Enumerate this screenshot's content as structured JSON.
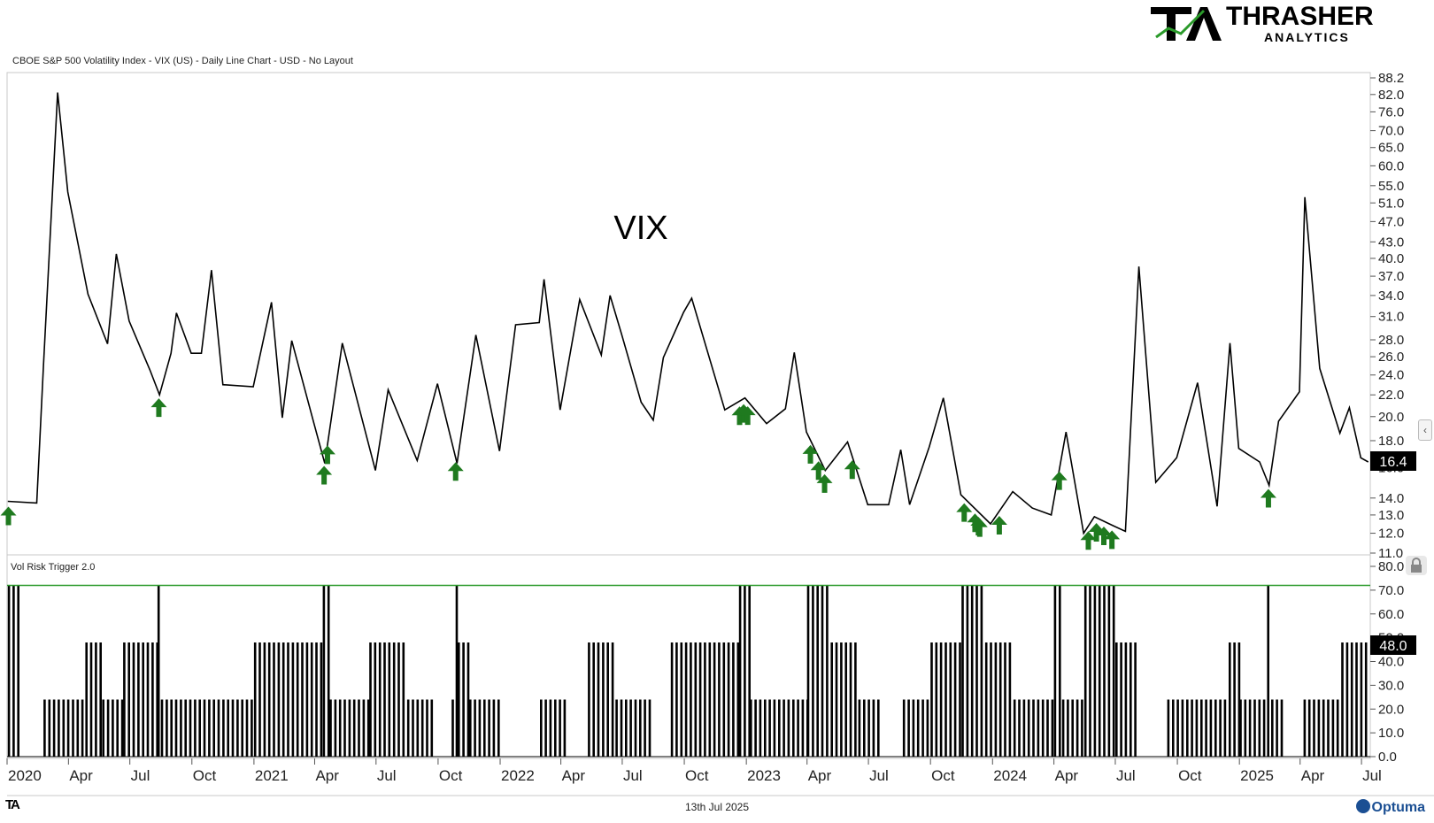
{
  "header": {
    "chart_title": "CBOE S&P 500 Volatility Index - VIX (US) - Daily Line Chart - USD - No Layout",
    "annotation": "VIX"
  },
  "logo": {
    "big": "THRASHER",
    "small": "ANALYTICS",
    "mark": "TA"
  },
  "footer": {
    "date": "13th Jul 2025",
    "brand": "Optuma",
    "mark": "TA"
  },
  "indicator_title": "Vol Risk Trigger 2.0",
  "colors": {
    "line": "#000000",
    "arrow": "#1f7a1f",
    "trigger_line": "#2a9a2a",
    "price_tag": "#000000"
  },
  "icons": {
    "side": "chevron-left-icon",
    "lock": "lock-icon"
  },
  "chart_data": [
    {
      "type": "line",
      "title": "CBOE S&P 500 Volatility Index - VIX (US) - Daily Line Chart - USD - No Layout",
      "y_scale": "log",
      "ylim": [
        11.0,
        88.2
      ],
      "y_ticks": [
        "88.2",
        "82.0",
        "76.0",
        "70.0",
        "65.0",
        "60.0",
        "55.0",
        "51.0",
        "47.0",
        "43.0",
        "40.0",
        "37.0",
        "34.0",
        "31.0",
        "28.0",
        "26.0",
        "24.0",
        "22.0",
        "20.0",
        "18.0",
        "16.0",
        "14.0",
        "13.0",
        "12.0",
        "11.0"
      ],
      "last_value": "16.4",
      "x_ticks": [
        "2020",
        "Apr",
        "Jul",
        "Oct",
        "2021",
        "Apr",
        "Jul",
        "Oct",
        "2022",
        "Apr",
        "Jul",
        "Oct",
        "2023",
        "Apr",
        "Jul",
        "Oct",
        "2024",
        "Apr",
        "Jul",
        "Oct",
        "2025",
        "Apr",
        "Jul"
      ],
      "series": [
        {
          "x": [
            "2020-01-02",
            "2020-02-14",
            "2020-02-24",
            "2020-03-16",
            "2020-03-31",
            "2020-04-30",
            "2020-05-29",
            "2020-06-11",
            "2020-06-30",
            "2020-07-31",
            "2020-08-14",
            "2020-08-31",
            "2020-09-08",
            "2020-09-30",
            "2020-10-15",
            "2020-10-30",
            "2020-11-16",
            "2020-12-31",
            "2021-01-27",
            "2021-02-12",
            "2021-02-26",
            "2021-03-31",
            "2021-04-16",
            "2021-05-12",
            "2021-06-30",
            "2021-07-19",
            "2021-08-31",
            "2021-09-30",
            "2021-10-29",
            "2021-11-26",
            "2021-12-31",
            "2022-01-24",
            "2022-02-28",
            "2022-03-07",
            "2022-03-31",
            "2022-04-29",
            "2022-05-31",
            "2022-06-13",
            "2022-06-30",
            "2022-07-29",
            "2022-08-16",
            "2022-08-31",
            "2022-09-30",
            "2022-10-12",
            "2022-11-30",
            "2022-12-30",
            "2023-01-31",
            "2023-02-28",
            "2023-03-13",
            "2023-03-31",
            "2023-04-28",
            "2023-05-31",
            "2023-06-30",
            "2023-07-31",
            "2023-08-18",
            "2023-08-31",
            "2023-09-29",
            "2023-10-20",
            "2023-11-15",
            "2023-12-29",
            "2024-01-31",
            "2024-02-29",
            "2024-03-28",
            "2024-04-19",
            "2024-05-15",
            "2024-05-31",
            "2024-06-28",
            "2024-07-16",
            "2024-08-05",
            "2024-08-30",
            "2024-09-30",
            "2024-10-31",
            "2024-11-29",
            "2024-12-18",
            "2024-12-31",
            "2025-01-31",
            "2025-02-14",
            "2025-02-28",
            "2025-03-31",
            "2025-04-08",
            "2025-04-30",
            "2025-05-30",
            "2025-06-13",
            "2025-06-30",
            "2025-07-11"
          ],
          "y": [
            13.8,
            13.7,
            25.0,
            82.7,
            53.5,
            34.2,
            27.5,
            40.8,
            30.4,
            24.5,
            22.0,
            26.4,
            31.5,
            26.4,
            26.4,
            38.0,
            23.0,
            22.8,
            33.0,
            19.9,
            27.9,
            19.4,
            16.3,
            27.6,
            15.8,
            22.5,
            16.5,
            23.1,
            16.3,
            28.6,
            17.2,
            29.9,
            30.2,
            36.5,
            20.6,
            33.4,
            26.2,
            34.0,
            28.7,
            21.3,
            19.7,
            25.9,
            31.6,
            33.6,
            20.6,
            21.7,
            19.4,
            20.7,
            26.5,
            18.7,
            15.8,
            17.9,
            13.6,
            13.6,
            17.3,
            13.6,
            17.5,
            21.7,
            14.2,
            12.5,
            14.4,
            13.4,
            13.0,
            18.7,
            12.0,
            12.9,
            12.4,
            12.1,
            38.6,
            15.0,
            16.7,
            23.2,
            13.5,
            27.6,
            17.4,
            16.4,
            14.8,
            19.6,
            22.3,
            52.3,
            24.7,
            18.6,
            20.8,
            16.7,
            16.4
          ]
        }
      ],
      "signals": [
        "2020-01-03",
        "2020-08-13",
        "2021-04-15",
        "2021-04-20",
        "2021-10-27",
        "2022-12-22",
        "2022-12-28",
        "2023-01-03",
        "2023-04-06",
        "2023-04-18",
        "2023-04-27",
        "2023-06-07",
        "2023-11-20",
        "2023-12-06",
        "2023-12-11",
        "2023-12-13",
        "2024-01-11",
        "2024-04-09",
        "2024-05-22",
        "2024-06-03",
        "2024-06-14",
        "2024-06-26",
        "2025-02-13"
      ]
    },
    {
      "type": "bar",
      "title": "Vol Risk Trigger 2.0",
      "ylim": [
        0,
        80
      ],
      "y_ticks": [
        "80.0",
        "70.0",
        "60.0",
        "50.0",
        "40.0",
        "30.0",
        "20.0",
        "10.0",
        "0.0"
      ],
      "last_value": "48.0",
      "threshold": 72,
      "levels": [
        0,
        24,
        48,
        72
      ],
      "segments": [
        {
          "from": "2020-01-02",
          "to": "2020-01-20",
          "v": 72
        },
        {
          "from": "2020-01-21",
          "to": "2020-02-23",
          "v": 0
        },
        {
          "from": "2020-02-24",
          "to": "2020-04-25",
          "v": 24
        },
        {
          "from": "2020-04-26",
          "to": "2020-05-20",
          "v": 48
        },
        {
          "from": "2020-05-21",
          "to": "2020-06-20",
          "v": 24
        },
        {
          "from": "2020-06-21",
          "to": "2020-08-10",
          "v": 48
        },
        {
          "from": "2020-08-11",
          "to": "2020-08-15",
          "v": 72
        },
        {
          "from": "2020-08-16",
          "to": "2020-10-31",
          "v": 24
        },
        {
          "from": "2020-11-01",
          "to": "2020-12-31",
          "v": 24
        },
        {
          "from": "2021-01-01",
          "to": "2021-04-12",
          "v": 48
        },
        {
          "from": "2021-04-13",
          "to": "2021-04-22",
          "v": 72
        },
        {
          "from": "2021-04-23",
          "to": "2021-06-20",
          "v": 24
        },
        {
          "from": "2021-06-21",
          "to": "2021-08-15",
          "v": 48
        },
        {
          "from": "2021-08-16",
          "to": "2021-09-25",
          "v": 24
        },
        {
          "from": "2021-09-26",
          "to": "2021-10-20",
          "v": 0
        },
        {
          "from": "2021-10-21",
          "to": "2021-10-26",
          "v": 24
        },
        {
          "from": "2021-10-27",
          "to": "2021-10-29",
          "v": 72
        },
        {
          "from": "2021-10-30",
          "to": "2021-11-15",
          "v": 48
        },
        {
          "from": "2021-11-16",
          "to": "2021-12-31",
          "v": 24
        },
        {
          "from": "2022-01-01",
          "to": "2022-02-28",
          "v": 0
        },
        {
          "from": "2022-03-01",
          "to": "2022-04-10",
          "v": 24
        },
        {
          "from": "2022-04-11",
          "to": "2022-05-10",
          "v": 0
        },
        {
          "from": "2022-05-11",
          "to": "2022-06-20",
          "v": 48
        },
        {
          "from": "2022-06-21",
          "to": "2022-08-10",
          "v": 24
        },
        {
          "from": "2022-08-11",
          "to": "2022-09-10",
          "v": 0
        },
        {
          "from": "2022-09-11",
          "to": "2022-12-20",
          "v": 48
        },
        {
          "from": "2022-12-21",
          "to": "2023-01-05",
          "v": 72
        },
        {
          "from": "2023-01-06",
          "to": "2023-03-31",
          "v": 24
        },
        {
          "from": "2023-04-01",
          "to": "2023-05-05",
          "v": 72
        },
        {
          "from": "2023-05-06",
          "to": "2023-06-15",
          "v": 48
        },
        {
          "from": "2023-06-16",
          "to": "2023-07-15",
          "v": 24
        },
        {
          "from": "2023-07-16",
          "to": "2023-08-20",
          "v": 0
        },
        {
          "from": "2023-08-21",
          "to": "2023-09-30",
          "v": 24
        },
        {
          "from": "2023-10-01",
          "to": "2023-11-15",
          "v": 48
        },
        {
          "from": "2023-11-16",
          "to": "2023-12-20",
          "v": 72
        },
        {
          "from": "2023-12-21",
          "to": "2024-01-31",
          "v": 48
        },
        {
          "from": "2024-02-01",
          "to": "2024-03-31",
          "v": 24
        },
        {
          "from": "2024-04-01",
          "to": "2024-04-12",
          "v": 72
        },
        {
          "from": "2024-04-13",
          "to": "2024-05-15",
          "v": 24
        },
        {
          "from": "2024-05-16",
          "to": "2024-06-30",
          "v": 72
        },
        {
          "from": "2024-07-01",
          "to": "2024-08-01",
          "v": 48
        },
        {
          "from": "2024-08-02",
          "to": "2024-09-15",
          "v": 0
        },
        {
          "from": "2024-09-16",
          "to": "2024-12-15",
          "v": 24
        },
        {
          "from": "2024-12-16",
          "to": "2024-12-31",
          "v": 48
        },
        {
          "from": "2025-01-01",
          "to": "2025-02-10",
          "v": 24
        },
        {
          "from": "2025-02-11",
          "to": "2025-02-16",
          "v": 72
        },
        {
          "from": "2025-02-17",
          "to": "2025-03-05",
          "v": 24
        },
        {
          "from": "2025-03-06",
          "to": "2025-04-05",
          "v": 0
        },
        {
          "from": "2025-04-06",
          "to": "2025-05-31",
          "v": 24
        },
        {
          "from": "2025-06-01",
          "to": "2025-07-11",
          "v": 48
        }
      ]
    }
  ]
}
